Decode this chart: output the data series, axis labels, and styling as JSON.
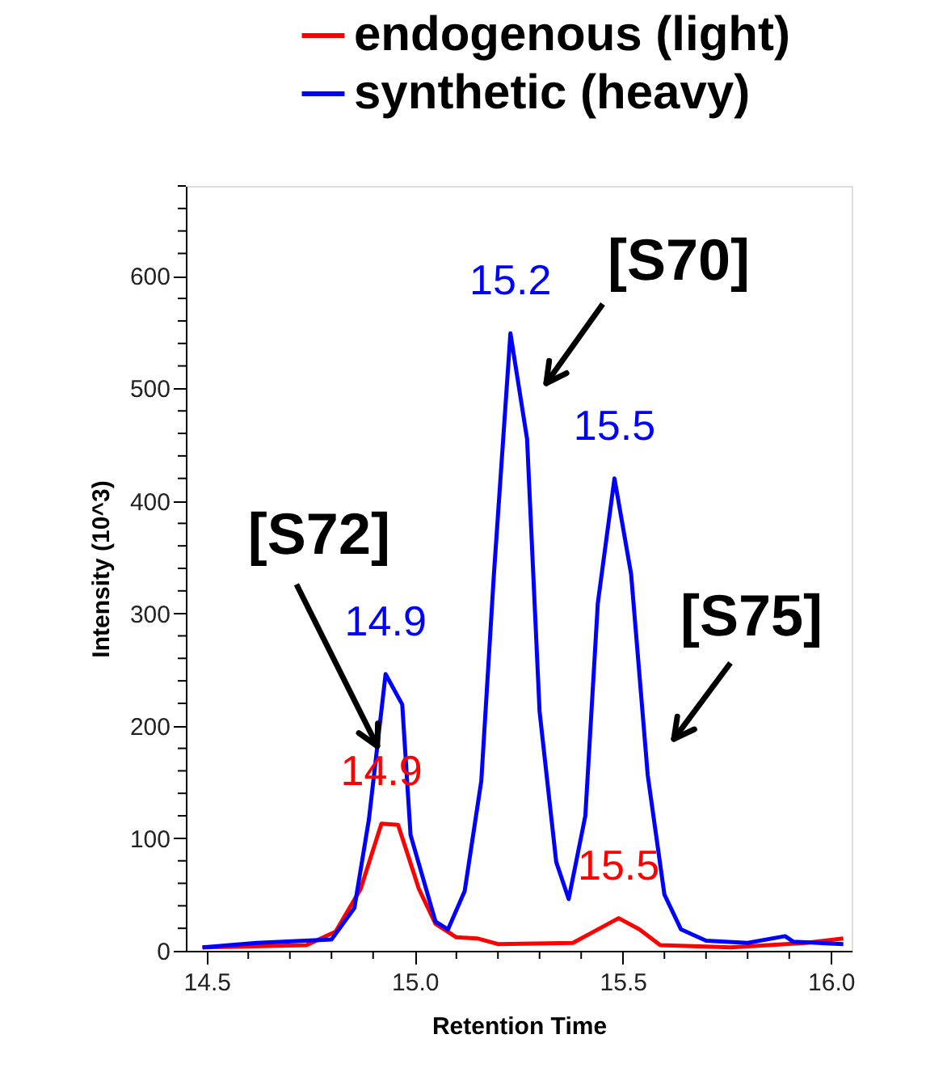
{
  "chart_data": {
    "type": "line",
    "xlabel": "Retention Time",
    "ylabel": "Intensity (10^3)",
    "xlim": [
      14.45,
      16.05
    ],
    "ylim": [
      0,
      680
    ],
    "xticks": [
      {
        "value": 14.5,
        "label": "14.5"
      },
      {
        "value": 14.6,
        "label": null
      },
      {
        "value": 14.7,
        "label": null
      },
      {
        "value": 14.8,
        "label": null
      },
      {
        "value": 14.9,
        "label": null
      },
      {
        "value": 15.0,
        "label": "15.0"
      },
      {
        "value": 15.1,
        "label": null
      },
      {
        "value": 15.2,
        "label": null
      },
      {
        "value": 15.3,
        "label": null
      },
      {
        "value": 15.4,
        "label": null
      },
      {
        "value": 15.5,
        "label": "15.5"
      },
      {
        "value": 15.6,
        "label": null
      },
      {
        "value": 15.7,
        "label": null
      },
      {
        "value": 15.8,
        "label": null
      },
      {
        "value": 15.9,
        "label": null
      },
      {
        "value": 16.0,
        "label": "16.0"
      }
    ],
    "yticks": [
      0,
      {
        "value": 20,
        "label": null
      },
      {
        "value": 40,
        "label": null
      },
      {
        "value": 60,
        "label": null
      },
      {
        "value": 80,
        "label": null
      },
      100,
      {
        "value": 120,
        "label": null
      },
      {
        "value": 140,
        "label": null
      },
      {
        "value": 160,
        "label": null
      },
      {
        "value": 180,
        "label": null
      },
      200,
      {
        "value": 220,
        "label": null
      },
      {
        "value": 240,
        "label": null
      },
      {
        "value": 260,
        "label": null
      },
      {
        "value": 280,
        "label": null
      },
      300,
      {
        "value": 320,
        "label": null
      },
      {
        "value": 340,
        "label": null
      },
      {
        "value": 360,
        "label": null
      },
      {
        "value": 380,
        "label": null
      },
      400,
      {
        "value": 420,
        "label": null
      },
      {
        "value": 440,
        "label": null
      },
      {
        "value": 460,
        "label": null
      },
      {
        "value": 480,
        "label": null
      },
      500,
      {
        "value": 520,
        "label": null
      },
      {
        "value": 540,
        "label": null
      },
      {
        "value": 560,
        "label": null
      },
      {
        "value": 580,
        "label": null
      },
      600,
      {
        "value": 620,
        "label": null
      },
      {
        "value": 640,
        "label": null
      },
      {
        "value": 660,
        "label": null
      },
      {
        "value": 680,
        "label": null
      }
    ],
    "grid": false,
    "legend": "top",
    "marker": "none",
    "line_style": "solid",
    "series": [
      {
        "name": "endogenous (light)",
        "color": "#ff0000",
        "x": [
          14.49,
          14.74,
          14.81,
          14.87,
          14.92,
          14.96,
          15.01,
          15.05,
          15.1,
          15.15,
          15.2,
          15.38,
          15.43,
          15.49,
          15.54,
          15.59,
          15.76,
          15.94,
          16.03
        ],
        "values": [
          3,
          5,
          17,
          55,
          113,
          112,
          55,
          24,
          12,
          11,
          6,
          7,
          17,
          29,
          19,
          5,
          3,
          7,
          11
        ]
      },
      {
        "name": "synthetic (heavy)",
        "color": "#0000ff",
        "x": [
          14.49,
          14.62,
          14.8,
          14.855,
          14.89,
          14.93,
          14.97,
          14.99,
          15.05,
          15.08,
          15.12,
          15.16,
          15.19,
          15.23,
          15.27,
          15.3,
          15.34,
          15.37,
          15.41,
          15.44,
          15.48,
          15.52,
          15.56,
          15.6,
          15.64,
          15.7,
          15.8,
          15.89,
          15.91,
          16.03
        ],
        "values": [
          3,
          7,
          10,
          38,
          117,
          246,
          219,
          103,
          26,
          19,
          53,
          151,
          333,
          549,
          455,
          213,
          79,
          46,
          120,
          309,
          420,
          335,
          156,
          50,
          19,
          9,
          7,
          13,
          8,
          6
        ]
      }
    ],
    "annotations": [
      {
        "text": "[S72]",
        "x": 14.91,
        "y": 182
      },
      "[S70]",
      "[S75]",
      {
        "text": "14.9",
        "x": 14.93,
        "y": 246
      },
      {
        "text": "15.2",
        "x": 15.23,
        "y": 549
      },
      {
        "text": "15.5",
        "x": 15.48,
        "y": 420
      },
      {
        "text": "14.9",
        "x": 14.92,
        "y": 113
      },
      {
        "text": "15.5",
        "x": 15.49,
        "y": 29
      }
    ]
  }
}
